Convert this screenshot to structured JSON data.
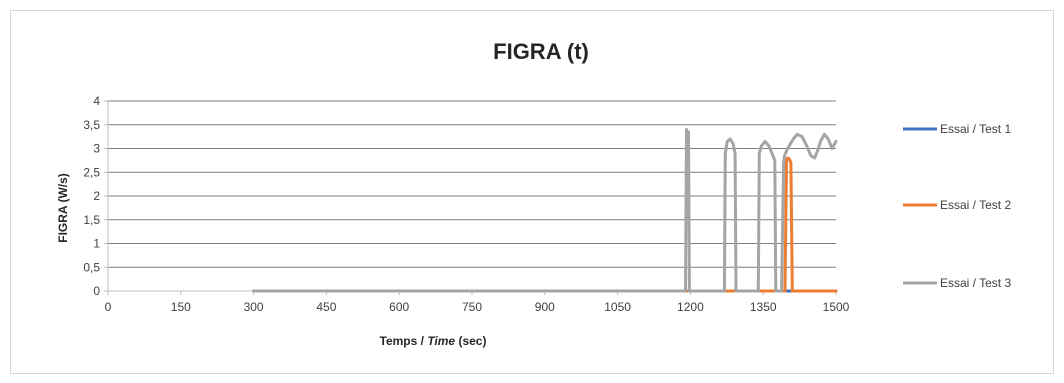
{
  "chart_data": {
    "type": "line",
    "title": "FIGRA (t)",
    "xlabel_parts": [
      "Temps / ",
      "Time",
      " (sec)"
    ],
    "ylabel": "FIGRA (W/s)",
    "xlim": [
      0,
      1500
    ],
    "ylim": [
      0,
      4
    ],
    "x_ticks": [
      0,
      150,
      300,
      450,
      600,
      750,
      900,
      1050,
      1200,
      1350,
      1500
    ],
    "x_tick_labels": [
      "0",
      "150",
      "300",
      "450",
      "600",
      "750",
      "900",
      "1050",
      "1200",
      "1350",
      "1500"
    ],
    "y_ticks": [
      0,
      0.5,
      1,
      1.5,
      2,
      2.5,
      3,
      3.5,
      4
    ],
    "y_tick_labels": [
      "0",
      "0,5",
      "1",
      "1,5",
      "2",
      "2,5",
      "3",
      "3,5",
      "4"
    ],
    "grid": true,
    "legend_position": "right",
    "series": [
      {
        "name": "Essai / Test 1",
        "color": "#4472C4",
        "x": [
          300,
          1500
        ],
        "y": [
          0,
          0
        ]
      },
      {
        "name": "Essai / Test 2",
        "color": "#ED7D31",
        "x": [
          300,
          1395,
          1398,
          1400,
          1404,
          1407,
          1410,
          1500
        ],
        "y": [
          0,
          0,
          2.75,
          2.8,
          2.78,
          2.7,
          0,
          0
        ]
      },
      {
        "name": "Essai / Test 3",
        "color": "#A5A5A5",
        "x": [
          300,
          1190,
          1192,
          1194,
          1196,
          1198,
          1270,
          1272,
          1276,
          1282,
          1288,
          1292,
          1294,
          1340,
          1342,
          1346,
          1354,
          1362,
          1370,
          1374,
          1376,
          1388,
          1392,
          1394,
          1400,
          1406,
          1412,
          1420,
          1430,
          1440,
          1448,
          1456,
          1462,
          1468,
          1476,
          1484,
          1492,
          1500
        ],
        "y": [
          0,
          0,
          3.4,
          3.1,
          3.35,
          0,
          0,
          2.9,
          3.15,
          3.2,
          3.1,
          2.9,
          0,
          0,
          2.9,
          3.05,
          3.15,
          3.05,
          2.85,
          2.75,
          0,
          0,
          2.7,
          2.85,
          3.0,
          3.1,
          3.2,
          3.3,
          3.25,
          3.05,
          2.85,
          2.8,
          2.95,
          3.15,
          3.3,
          3.2,
          3.0,
          3.15
        ]
      }
    ]
  }
}
